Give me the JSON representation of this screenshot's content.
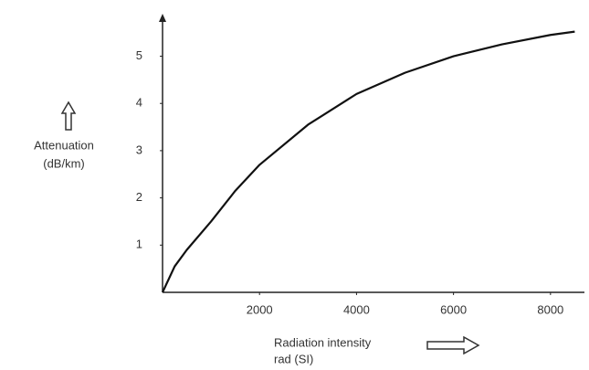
{
  "chart_data": {
    "type": "line",
    "ylabel": [
      "Attenuation",
      "(dB/km)"
    ],
    "xlabel": [
      "Radiation intensity",
      "rad (SI)"
    ],
    "x": [
      0,
      250,
      500,
      1000,
      1500,
      2000,
      3000,
      4000,
      5000,
      6000,
      7000,
      8000,
      8500
    ],
    "series": [
      {
        "color": "#111111",
        "values": [
          0,
          0.55,
          0.9,
          1.5,
          2.15,
          2.7,
          3.55,
          4.2,
          4.65,
          5.0,
          5.25,
          5.45,
          5.52
        ]
      }
    ],
    "xlim": [
      0,
      8700
    ],
    "ylim": [
      0,
      5.9
    ],
    "xticks": [
      2000,
      4000,
      6000,
      8000
    ],
    "yticks": [
      1,
      2,
      3,
      4,
      5
    ],
    "grid": false
  }
}
